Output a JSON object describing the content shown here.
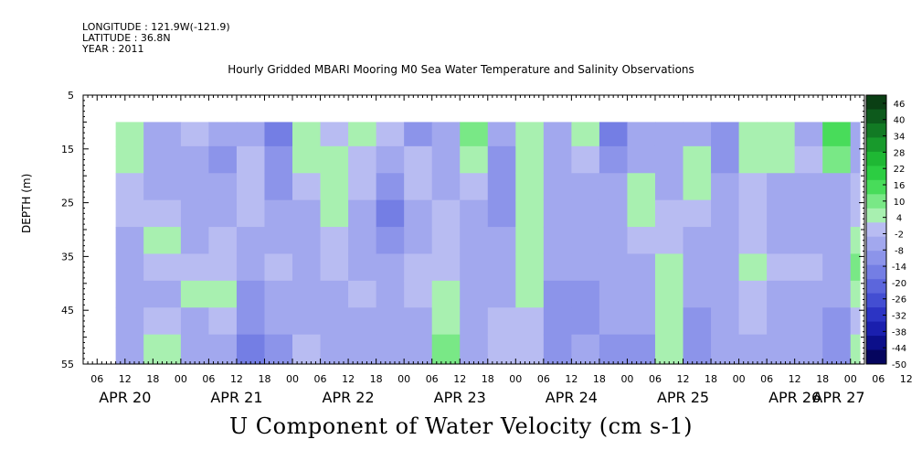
{
  "meta": {
    "longitude": "LONGITUDE : 121.9W(-121.9)",
    "latitude": "LATITUDE : 36.8N",
    "year": "YEAR : 2011"
  },
  "chart_title": "Hourly Gridded MBARI Mooring M0 Sea Water Temperature and Salinity Observations",
  "main_title": "U Component of Water Velocity (cm s-1)",
  "chart_data": {
    "type": "heatmap",
    "title": "U Component of Water Velocity (cm s-1)",
    "subtitle": "Hourly Gridded MBARI Mooring M0 Sea Water Temperature and Salinity Observations",
    "xlabel": "",
    "ylabel": "DEPTH (m)",
    "ylim": [
      5,
      55
    ],
    "y_ticks": [
      5,
      15,
      25,
      35,
      45,
      55
    ],
    "y_inverted": true,
    "x_hour_ticks": [
      "06",
      "12",
      "18",
      "00",
      "06",
      "12",
      "18",
      "00",
      "06",
      "12",
      "18",
      "00",
      "06",
      "12",
      "18",
      "00",
      "06",
      "12",
      "18",
      "00",
      "06",
      "12",
      "18",
      "00",
      "06",
      "12",
      "18",
      "00",
      "06",
      "12",
      "18",
      "00"
    ],
    "x_day_labels": [
      "APR 20",
      "APR 21",
      "APR 22",
      "APR 23",
      "APR 24",
      "APR 25",
      "APR 26",
      "APR 27"
    ],
    "data_start": "2011-04-20T10:00",
    "data_end": "2011-04-27T02:00",
    "data_depth_range": [
      10,
      55
    ],
    "colorbar_ticks": [
      46,
      40,
      34,
      28,
      22,
      16,
      10,
      4,
      -2,
      -8,
      -14,
      -20,
      -26,
      -32,
      -38,
      -44,
      -50
    ],
    "colorbar_colors": [
      "#0a3f14",
      "#0d5a1c",
      "#127a24",
      "#189a2c",
      "#1fb834",
      "#2ccd42",
      "#48dc5a",
      "#79e886",
      "#a8f0b0",
      "#b8bcf2",
      "#a2a8ee",
      "#8c94ea",
      "#747ee4",
      "#5c66dc",
      "#434ed2",
      "#2c34c4",
      "#1a1fae",
      "#0c0f8a",
      "#05055e"
    ],
    "depths": [
      12,
      17,
      22,
      27,
      32,
      37,
      42,
      47,
      52
    ],
    "columns": [
      {
        "t": "APR 20 10:00",
        "v": [
          6,
          4,
          2,
          -2,
          -6,
          -6,
          -6,
          -4,
          -4
        ]
      },
      {
        "t": "APR 20 16:00",
        "v": [
          -6,
          -8,
          -4,
          2,
          4,
          0,
          -4,
          -2,
          4
        ]
      },
      {
        "t": "APR 21 00:00",
        "v": [
          2,
          -4,
          -6,
          -8,
          -4,
          -2,
          4,
          -4,
          -8
        ]
      },
      {
        "t": "APR 21 06:00",
        "v": [
          -8,
          -10,
          -8,
          -6,
          -2,
          2,
          4,
          -2,
          -6
        ]
      },
      {
        "t": "APR 21 12:00",
        "v": [
          -4,
          -2,
          2,
          0,
          -4,
          -8,
          -10,
          -12,
          -14
        ]
      },
      {
        "t": "APR 21 18:00",
        "v": [
          -14,
          -12,
          -10,
          -8,
          -6,
          0,
          -4,
          -6,
          -10
        ]
      },
      {
        "t": "APR 22 00:00",
        "v": [
          4,
          6,
          2,
          -4,
          -6,
          -6,
          -8,
          -4,
          -2
        ]
      },
      {
        "t": "APR 22 06:00",
        "v": [
          -2,
          4,
          6,
          4,
          2,
          -2,
          -4,
          -6,
          -8
        ]
      },
      {
        "t": "APR 22 12:00",
        "v": [
          4,
          2,
          -2,
          -6,
          -8,
          -4,
          -2,
          -4,
          -6
        ]
      },
      {
        "t": "APR 22 18:00",
        "v": [
          -2,
          -4,
          -10,
          -14,
          -10,
          -8,
          -6,
          -4,
          -8
        ]
      },
      {
        "t": "APR 23 00:00",
        "v": [
          -10,
          2,
          2,
          -4,
          -6,
          0,
          2,
          -4,
          -8
        ]
      },
      {
        "t": "APR 23 06:00",
        "v": [
          -8,
          -6,
          -4,
          -2,
          -2,
          2,
          4,
          6,
          8
        ]
      },
      {
        "t": "APR 23 12:00",
        "v": [
          8,
          4,
          -2,
          -6,
          -8,
          -8,
          -6,
          -6,
          -4
        ]
      },
      {
        "t": "APR 23 18:00",
        "v": [
          -6,
          -10,
          -12,
          -10,
          -8,
          -6,
          -4,
          -2,
          -2
        ]
      },
      {
        "t": "APR 24 00:00",
        "v": [
          6,
          6,
          4,
          4,
          4,
          6,
          4,
          2,
          0
        ]
      },
      {
        "t": "APR 24 06:00",
        "v": [
          -4,
          -4,
          -6,
          -8,
          -6,
          -8,
          -10,
          -12,
          -10
        ]
      },
      {
        "t": "APR 24 12:00",
        "v": [
          4,
          -2,
          -6,
          -8,
          -8,
          -8,
          -10,
          -10,
          -8
        ]
      },
      {
        "t": "APR 24 18:00",
        "v": [
          -14,
          -10,
          -8,
          -6,
          -4,
          -4,
          -6,
          -8,
          -10
        ]
      },
      {
        "t": "APR 25 00:00",
        "v": [
          -6,
          -4,
          4,
          6,
          2,
          -4,
          -6,
          -8,
          -10
        ]
      },
      {
        "t": "APR 25 06:00",
        "v": [
          -8,
          -6,
          -4,
          -2,
          -2,
          4,
          6,
          6,
          4
        ]
      },
      {
        "t": "APR 25 12:00",
        "v": [
          -4,
          4,
          6,
          2,
          -4,
          -6,
          -8,
          -10,
          -12
        ]
      },
      {
        "t": "APR 25 18:00",
        "v": [
          -10,
          -12,
          -8,
          -6,
          -4,
          -4,
          -6,
          -4,
          -6
        ]
      },
      {
        "t": "APR 26 00:00",
        "v": [
          4,
          6,
          2,
          -2,
          2,
          4,
          2,
          -2,
          -4
        ]
      },
      {
        "t": "APR 26 06:00",
        "v": [
          6,
          4,
          -4,
          -6,
          -4,
          -2,
          -4,
          -6,
          -8
        ]
      },
      {
        "t": "APR 26 12:00",
        "v": [
          -4,
          -2,
          -4,
          -6,
          -4,
          -2,
          -4,
          -6,
          -8
        ]
      },
      {
        "t": "APR 26 18:00",
        "v": [
          14,
          8,
          -4,
          -6,
          -6,
          -6,
          -8,
          -10,
          -12
        ]
      },
      {
        "t": "APR 27 00:00",
        "v": [
          -4,
          -6,
          -2,
          2,
          6,
          8,
          6,
          2,
          4
        ]
      }
    ]
  }
}
